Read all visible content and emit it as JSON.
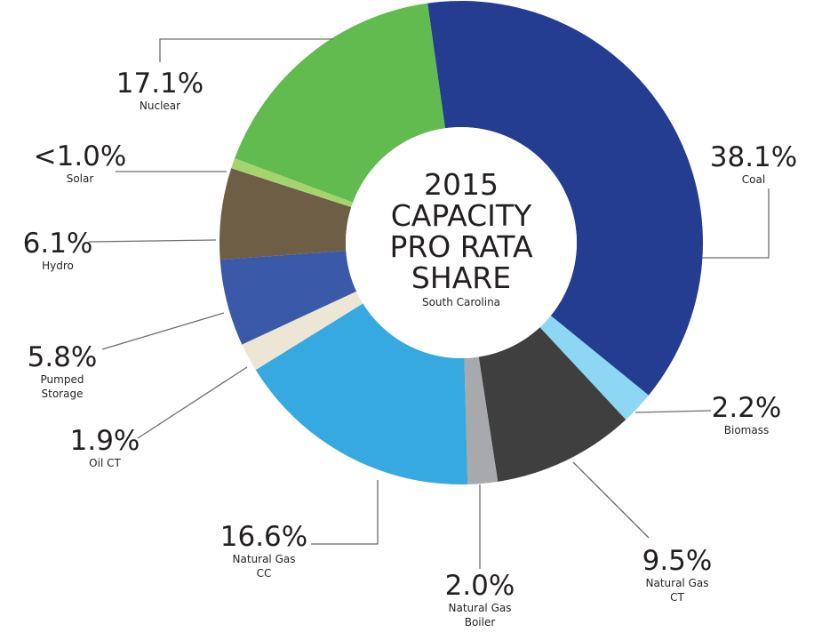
{
  "chart_data": {
    "type": "donut",
    "title": [
      "2015",
      "CAPACITY",
      "PRO RATA",
      "SHARE"
    ],
    "subtitle": "South Carolina",
    "categories": [
      "Coal",
      "Biomass",
      "Natural Gas CT",
      "Natural Gas Boiler",
      "Natural Gas CC",
      "Oil CT",
      "Pumped Storage",
      "Hydro",
      "Solar",
      "Nuclear"
    ],
    "values": [
      38.1,
      2.2,
      9.5,
      2.0,
      16.6,
      1.9,
      5.8,
      6.1,
      0.7,
      17.1
    ],
    "value_labels": [
      "38.1%",
      "2.2%",
      "9.5%",
      "2.0%",
      "16.6%",
      "1.9%",
      "5.8%",
      "6.1%",
      "<1.0%",
      "17.1%"
    ],
    "colors": [
      "#253d91",
      "#8dd7f5",
      "#3f3f3f",
      "#a7a9ac",
      "#36a9e0",
      "#ede6d4",
      "#3a59a8",
      "#6d5e45",
      "#a5d36e",
      "#62bb4f"
    ]
  }
}
